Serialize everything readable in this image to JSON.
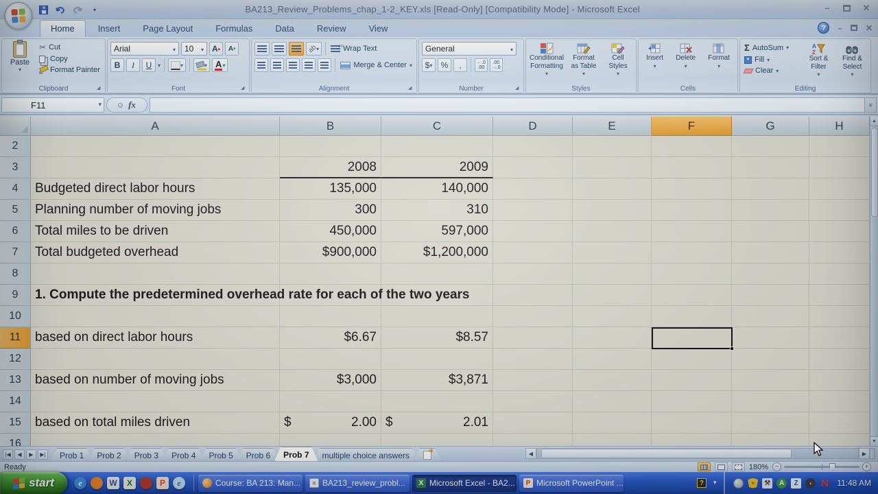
{
  "window": {
    "title": "BA213_Review_Problems_chap_1-2_KEY.xls  [Read-Only]  [Compatibility Mode] - Microsoft Excel"
  },
  "ribbon": {
    "tabs": [
      "Home",
      "Insert",
      "Page Layout",
      "Formulas",
      "Data",
      "Review",
      "View"
    ],
    "active_tab": "Home",
    "groups": {
      "clipboard": {
        "label": "Clipboard",
        "paste": "Paste",
        "cut": "Cut",
        "copy": "Copy",
        "format_painter": "Format Painter"
      },
      "font": {
        "label": "Font",
        "font_name": "Arial",
        "font_size": "10",
        "bold": "B",
        "italic": "I",
        "underline": "U"
      },
      "alignment": {
        "label": "Alignment",
        "wrap_text": "Wrap Text",
        "merge_center": "Merge & Center"
      },
      "number": {
        "label": "Number",
        "format": "General",
        "accounting": "$",
        "percent": "%",
        "comma": ","
      },
      "styles": {
        "label": "Styles",
        "conditional": "Conditional Formatting",
        "format_table": "Format as Table",
        "cell_styles": "Cell Styles"
      },
      "cells": {
        "label": "Cells",
        "insert": "Insert",
        "delete": "Delete",
        "format": "Format"
      },
      "editing": {
        "label": "Editing",
        "sigma": "Σ",
        "autosum": "AutoSum",
        "fill": "Fill",
        "clear": "Clear",
        "sort_filter": "Sort & Filter",
        "find_select": "Find & Select"
      }
    }
  },
  "formula_bar": {
    "name_box": "F11",
    "fx": "fx",
    "formula": ""
  },
  "grid": {
    "columns": [
      "A",
      "B",
      "C",
      "D",
      "E",
      "F",
      "G",
      "H"
    ],
    "selected_column": "F",
    "selected_row": "11",
    "active_cell": "F11",
    "rows": [
      {
        "num": "2",
        "a": "",
        "b": "",
        "c": ""
      },
      {
        "num": "3",
        "a": "",
        "b": "2008",
        "c": "2009",
        "year_underline": true
      },
      {
        "num": "4",
        "a": "Budgeted direct labor hours",
        "b": "135,000",
        "c": "140,000"
      },
      {
        "num": "5",
        "a": "Planning number of moving jobs",
        "b": "300",
        "c": "310"
      },
      {
        "num": "6",
        "a": "Total miles to be driven",
        "b": "450,000",
        "c": "597,000"
      },
      {
        "num": "7",
        "a": "Total budgeted overhead",
        "b": "$900,000",
        "c": "$1,200,000"
      },
      {
        "num": "8",
        "a": "",
        "b": "",
        "c": ""
      },
      {
        "num": "9",
        "a": "1. Compute the predetermined overhead rate for each of the two years",
        "b": "",
        "c": "",
        "bold": true
      },
      {
        "num": "10",
        "a": "",
        "b": "",
        "c": ""
      },
      {
        "num": "11",
        "a": "based on direct labor hours",
        "b": "$6.67",
        "c": "$8.57",
        "selected": true
      },
      {
        "num": "12",
        "a": "",
        "b": "",
        "c": ""
      },
      {
        "num": "13",
        "a": "based on number of moving jobs",
        "b": "$3,000",
        "c": "$3,871"
      },
      {
        "num": "14",
        "a": "",
        "b": "",
        "c": ""
      },
      {
        "num": "15",
        "a": "based on total miles driven",
        "b": "2.00",
        "c": "2.01",
        "currency": "$",
        "accounting": true
      },
      {
        "num": "16",
        "a": "",
        "b": "",
        "c": ""
      }
    ]
  },
  "sheet_bar": {
    "tabs": [
      "Prob 1",
      "Prob 2",
      "Prob 3",
      "Prob 4",
      "Prob 5",
      "Prob 6",
      "Prob 7",
      "multiple choice answers"
    ],
    "active_tab": "Prob 7"
  },
  "status_bar": {
    "mode": "Ready",
    "zoom": "180%"
  },
  "taskbar": {
    "start": "start",
    "quick_launch": [
      {
        "name": "internet-explorer-icon",
        "glyph": "e",
        "bg": "#3e8edd",
        "fg": "#ffffff",
        "round": true
      },
      {
        "name": "firefox-icon",
        "glyph": "",
        "bg": "#e98431",
        "fg": "#ffffff",
        "round": true
      },
      {
        "name": "word-icon",
        "glyph": "W",
        "bg": "#e8edf4",
        "fg": "#2b579a",
        "round": false
      },
      {
        "name": "excel-icon",
        "glyph": "X",
        "bg": "#e6f0e6",
        "fg": "#1e7145",
        "round": false
      },
      {
        "name": "key-icon",
        "glyph": "",
        "bg": "#b23a2e",
        "fg": "#ffffff",
        "round": true
      },
      {
        "name": "powerpoint-icon",
        "glyph": "P",
        "bg": "#f3e3d2",
        "fg": "#d04727",
        "round": false
      },
      {
        "name": "browser-icon",
        "glyph": "e",
        "bg": "#bfe0f5",
        "fg": "#2b6fd4",
        "round": true
      }
    ],
    "tasks": [
      {
        "label": "Course: BA 213: Man...",
        "icon": "firefox",
        "active": false
      },
      {
        "label": "BA213_review_probl...",
        "icon": "document",
        "active": false
      },
      {
        "label": "Microsoft Excel - BA2...",
        "icon": "excel",
        "active": true
      },
      {
        "label": "Microsoft PowerPoint ...",
        "icon": "powerpoint",
        "active": false
      }
    ],
    "tray": {
      "icons": [
        "globe",
        "shield",
        "wrench",
        "green-a",
        "z-app",
        "volume",
        "noscript"
      ],
      "clock": "11:48 AM"
    }
  }
}
